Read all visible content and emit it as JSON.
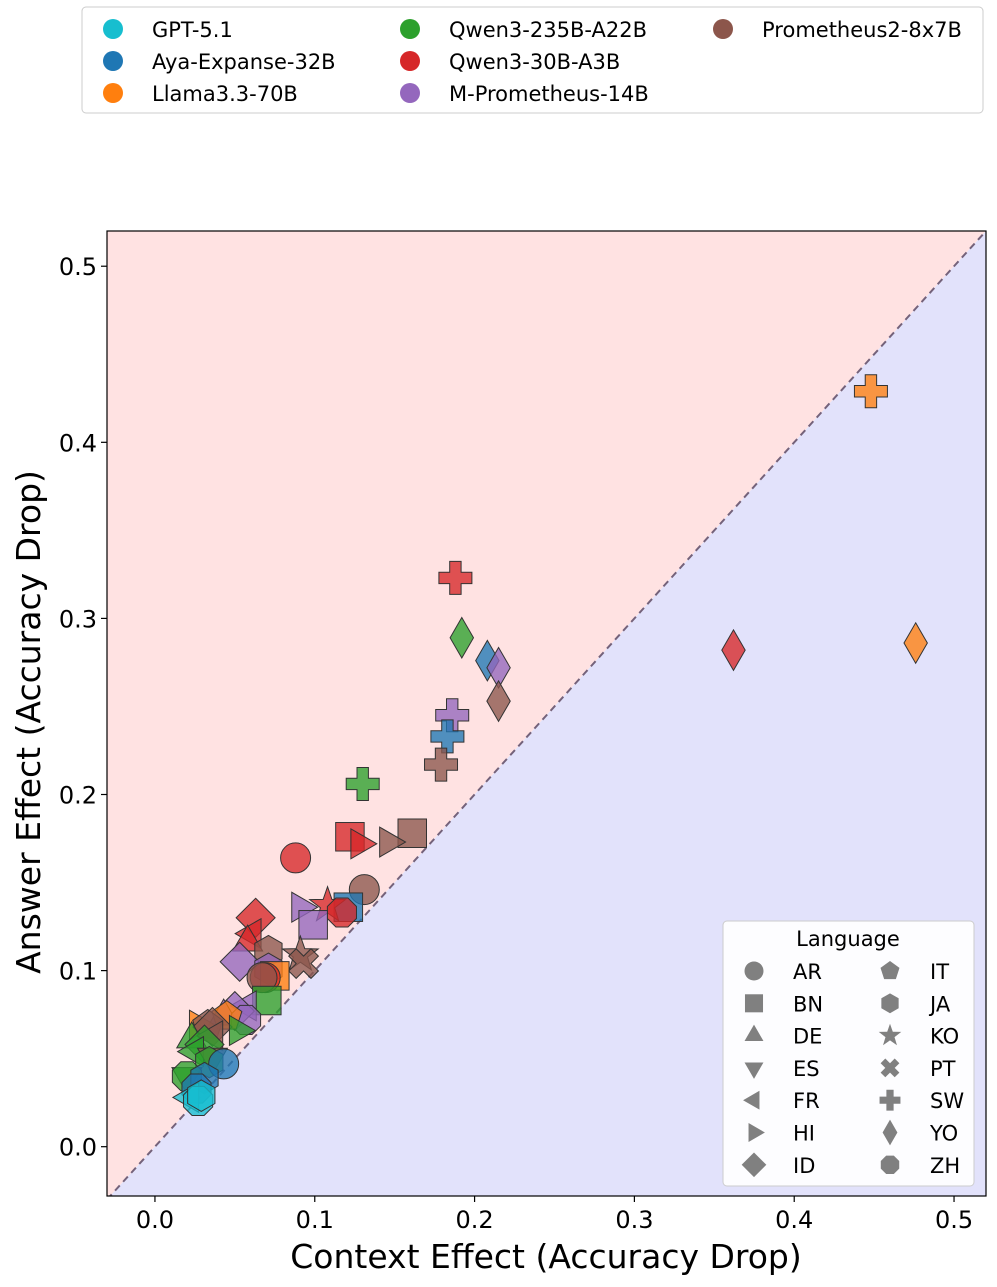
{
  "chart_data": {
    "type": "scatter",
    "xlabel": "Context Effect (Accuracy Drop)",
    "ylabel": "Answer Effect (Accuracy Drop)",
    "xlim": [
      -0.03,
      0.52
    ],
    "ylim": [
      -0.028,
      0.52
    ],
    "xticks": [
      "0.0",
      "0.1",
      "0.2",
      "0.3",
      "0.4",
      "0.5"
    ],
    "yticks": [
      "0.0",
      "0.1",
      "0.2",
      "0.3",
      "0.4",
      "0.5"
    ],
    "diagonal": "y = x (dashed)",
    "regions": {
      "above_diagonal": "#ffe2e2",
      "below_diagonal": "#e2e2fb"
    },
    "model_legend": {
      "placement": "top, above plot",
      "entries": [
        {
          "name": "GPT-5.1",
          "color": "#17becf"
        },
        {
          "name": "Aya-Expanse-32B",
          "color": "#1f77b4"
        },
        {
          "name": "Llama3.3-70B",
          "color": "#ff7f0e"
        },
        {
          "name": "Qwen3-235B-A22B",
          "color": "#2ca02c"
        },
        {
          "name": "Qwen3-30B-A3B",
          "color": "#d62728"
        },
        {
          "name": "M-Prometheus-14B",
          "color": "#9467bd"
        },
        {
          "name": "Prometheus2-8x7B",
          "color": "#8c564b"
        }
      ]
    },
    "language_legend": {
      "title": "Language",
      "placement": "lower right",
      "entries": [
        {
          "code": "AR",
          "marker": "circle"
        },
        {
          "code": "BN",
          "marker": "square"
        },
        {
          "code": "DE",
          "marker": "triangle-up"
        },
        {
          "code": "ES",
          "marker": "triangle-down"
        },
        {
          "code": "FR",
          "marker": "triangle-left"
        },
        {
          "code": "HI",
          "marker": "triangle-right"
        },
        {
          "code": "ID",
          "marker": "diamond"
        },
        {
          "code": "IT",
          "marker": "pentagon"
        },
        {
          "code": "JA",
          "marker": "hexagon"
        },
        {
          "code": "KO",
          "marker": "star"
        },
        {
          "code": "PT",
          "marker": "x"
        },
        {
          "code": "SW",
          "marker": "plus"
        },
        {
          "code": "YO",
          "marker": "thin-diamond"
        },
        {
          "code": "ZH",
          "marker": "octagon"
        }
      ]
    },
    "points": [
      {
        "model": "Llama3.3-70B",
        "lang": "SW",
        "x": 0.448,
        "y": 0.429
      },
      {
        "model": "Llama3.3-70B",
        "lang": "YO",
        "x": 0.476,
        "y": 0.286
      },
      {
        "model": "Qwen3-30B-A3B",
        "lang": "YO",
        "x": 0.362,
        "y": 0.282
      },
      {
        "model": "Qwen3-30B-A3B",
        "lang": "SW",
        "x": 0.188,
        "y": 0.323
      },
      {
        "model": "Qwen3-235B-A22B",
        "lang": "YO",
        "x": 0.192,
        "y": 0.289
      },
      {
        "model": "Aya-Expanse-32B",
        "lang": "YO",
        "x": 0.208,
        "y": 0.276
      },
      {
        "model": "M-Prometheus-14B",
        "lang": "YO",
        "x": 0.215,
        "y": 0.272
      },
      {
        "model": "Prometheus2-8x7B",
        "lang": "YO",
        "x": 0.215,
        "y": 0.253
      },
      {
        "model": "M-Prometheus-14B",
        "lang": "SW",
        "x": 0.186,
        "y": 0.245
      },
      {
        "model": "Aya-Expanse-32B",
        "lang": "SW",
        "x": 0.183,
        "y": 0.233
      },
      {
        "model": "Prometheus2-8x7B",
        "lang": "SW",
        "x": 0.179,
        "y": 0.217
      },
      {
        "model": "Qwen3-235B-A22B",
        "lang": "SW",
        "x": 0.13,
        "y": 0.206
      },
      {
        "model": "Prometheus2-8x7B",
        "lang": "BN",
        "x": 0.161,
        "y": 0.178
      },
      {
        "model": "Qwen3-30B-A3B",
        "lang": "BN",
        "x": 0.122,
        "y": 0.176
      },
      {
        "model": "Prometheus2-8x7B",
        "lang": "HI",
        "x": 0.146,
        "y": 0.173
      },
      {
        "model": "Qwen3-30B-A3B",
        "lang": "HI",
        "x": 0.128,
        "y": 0.172
      },
      {
        "model": "Qwen3-30B-A3B",
        "lang": "AR",
        "x": 0.088,
        "y": 0.164
      },
      {
        "model": "Prometheus2-8x7B",
        "lang": "AR",
        "x": 0.131,
        "y": 0.146
      },
      {
        "model": "Aya-Expanse-32B",
        "lang": "BN",
        "x": 0.121,
        "y": 0.136
      },
      {
        "model": "M-Prometheus-14B",
        "lang": "HI",
        "x": 0.091,
        "y": 0.136
      },
      {
        "model": "Qwen3-30B-A3B",
        "lang": "KO",
        "x": 0.108,
        "y": 0.137
      },
      {
        "model": "Qwen3-30B-A3B",
        "lang": "ZH",
        "x": 0.117,
        "y": 0.133
      },
      {
        "model": "Qwen3-30B-A3B",
        "lang": "ID",
        "x": 0.063,
        "y": 0.13
      },
      {
        "model": "M-Prometheus-14B",
        "lang": "BN",
        "x": 0.099,
        "y": 0.126
      },
      {
        "model": "Qwen3-30B-A3B",
        "lang": "FR",
        "x": 0.061,
        "y": 0.121
      },
      {
        "model": "Qwen3-30B-A3B",
        "lang": "DE",
        "x": 0.058,
        "y": 0.116
      },
      {
        "model": "Prometheus2-8x7B",
        "lang": "JA",
        "x": 0.071,
        "y": 0.111
      },
      {
        "model": "Prometheus2-8x7B",
        "lang": "KO",
        "x": 0.091,
        "y": 0.109
      },
      {
        "model": "M-Prometheus-14B",
        "lang": "ID",
        "x": 0.053,
        "y": 0.105
      },
      {
        "model": "Prometheus2-8x7B",
        "lang": "PT",
        "x": 0.093,
        "y": 0.104
      },
      {
        "model": "M-Prometheus-14B",
        "lang": "JA",
        "x": 0.071,
        "y": 0.101
      },
      {
        "model": "Llama3.3-70B",
        "lang": "BN",
        "x": 0.075,
        "y": 0.097
      },
      {
        "model": "Qwen3-30B-A3B",
        "lang": "AR",
        "x": 0.069,
        "y": 0.096
      },
      {
        "model": "Prometheus2-8x7B",
        "lang": "AR",
        "x": 0.067,
        "y": 0.096
      },
      {
        "model": "Qwen3-235B-A22B",
        "lang": "BN",
        "x": 0.07,
        "y": 0.083
      },
      {
        "model": "M-Prometheus-14B",
        "lang": "FR",
        "x": 0.058,
        "y": 0.08
      },
      {
        "model": "M-Prometheus-14B",
        "lang": "ID",
        "x": 0.05,
        "y": 0.077
      },
      {
        "model": "M-Prometheus-14B",
        "lang": "DE",
        "x": 0.043,
        "y": 0.074
      },
      {
        "model": "M-Prometheus-14B",
        "lang": "ZH",
        "x": 0.057,
        "y": 0.072
      },
      {
        "model": "Llama3.3-70B",
        "lang": "IT",
        "x": 0.045,
        "y": 0.074
      },
      {
        "model": "Llama3.3-70B",
        "lang": "HI",
        "x": 0.027,
        "y": 0.069
      },
      {
        "model": "Prometheus2-8x7B",
        "lang": "IT",
        "x": 0.033,
        "y": 0.069
      },
      {
        "model": "Prometheus2-8x7B",
        "lang": "ID",
        "x": 0.036,
        "y": 0.068
      },
      {
        "model": "Qwen3-235B-A22B",
        "lang": "HI",
        "x": 0.052,
        "y": 0.066
      },
      {
        "model": "Qwen3-235B-A22B",
        "lang": "DE",
        "x": 0.023,
        "y": 0.061
      },
      {
        "model": "Prometheus2-8x7B",
        "lang": "FR",
        "x": 0.037,
        "y": 0.063
      },
      {
        "model": "Qwen3-235B-A22B",
        "lang": "ID",
        "x": 0.031,
        "y": 0.058
      },
      {
        "model": "Qwen3-235B-A22B",
        "lang": "FR",
        "x": 0.025,
        "y": 0.054
      },
      {
        "model": "Prometheus2-8x7B",
        "lang": "ES",
        "x": 0.036,
        "y": 0.051
      },
      {
        "model": "Qwen3-235B-A22B",
        "lang": "JA",
        "x": 0.034,
        "y": 0.048
      },
      {
        "model": "Aya-Expanse-32B",
        "lang": "AR",
        "x": 0.043,
        "y": 0.047
      },
      {
        "model": "Qwen3-235B-A22B",
        "lang": "ES",
        "x": 0.02,
        "y": 0.04
      },
      {
        "model": "Qwen3-235B-A22B",
        "lang": "ZH",
        "x": 0.02,
        "y": 0.04
      },
      {
        "model": "Aya-Expanse-32B",
        "lang": "JA",
        "x": 0.031,
        "y": 0.039
      },
      {
        "model": "Aya-Expanse-32B",
        "lang": "ZH",
        "x": 0.026,
        "y": 0.033
      },
      {
        "model": "GPT-5.1",
        "lang": "FR",
        "x": 0.022,
        "y": 0.028
      },
      {
        "model": "GPT-5.1",
        "lang": "ZH",
        "x": 0.027,
        "y": 0.026
      },
      {
        "model": "GPT-5.1",
        "lang": "JA",
        "x": 0.029,
        "y": 0.029
      }
    ]
  }
}
